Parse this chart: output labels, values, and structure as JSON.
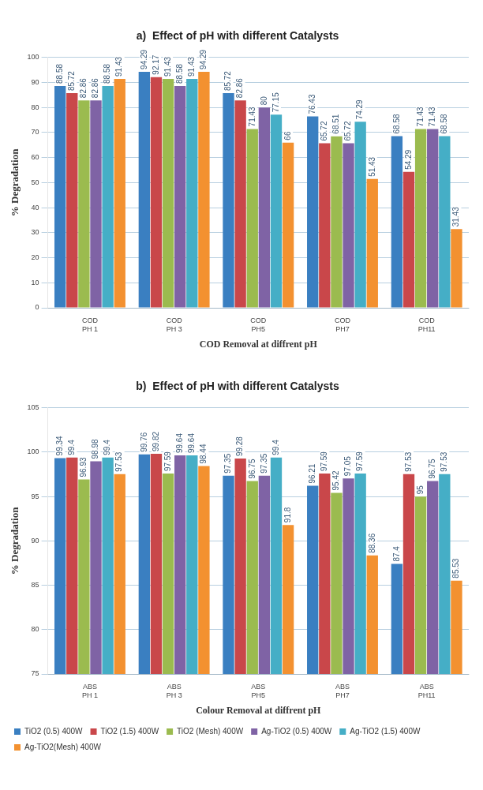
{
  "chart_data": [
    {
      "type": "bar",
      "title": "a)  Effect of pH with different Catalysts",
      "xlabel": "COD Removal at diffrent pH",
      "ylabel": "% Degradation",
      "categories": [
        "PH 1",
        "PH 3",
        "PH5",
        "PH7",
        "PH11"
      ],
      "annotations": [
        "COD",
        "COD",
        "COD",
        "COD",
        "COD"
      ],
      "series": [
        {
          "color": "#3a7fc1",
          "values": [
            88.58,
            94.29,
            85.72,
            76.43,
            68.58
          ]
        },
        {
          "color": "#c9474a",
          "values": [
            85.72,
            92.17,
            82.86,
            65.72,
            54.29
          ]
        },
        {
          "color": "#9bbb4f",
          "values": [
            82.86,
            91.43,
            71.43,
            68.51,
            71.43
          ]
        },
        {
          "color": "#7f63a5",
          "values": [
            82.86,
            88.58,
            80,
            65.72,
            71.43
          ]
        },
        {
          "color": "#45aec6",
          "values": [
            88.58,
            91.43,
            77.15,
            74.29,
            68.58
          ]
        },
        {
          "color": "#f39130",
          "values": [
            91.43,
            94.29,
            66,
            51.43,
            31.43
          ]
        }
      ],
      "ylim": [
        0,
        100
      ],
      "yticks": [
        0,
        10,
        20,
        30,
        40,
        50,
        60,
        70,
        80,
        90,
        100
      ],
      "grid": "y",
      "data_labels": true,
      "legend": false
    },
    {
      "type": "bar",
      "title": "b)  Effect of pH with different Catalysts",
      "xlabel": "Colour Removal at diffrent pH",
      "ylabel": "% Degradation",
      "categories": [
        "PH 1",
        "PH 3",
        "PH5",
        "PH7",
        "PH11"
      ],
      "annotations": [
        "ABS",
        "ABS",
        "ABS",
        "ABS",
        "ABS"
      ],
      "series": [
        {
          "name": "TiO2 (0.5) 400W",
          "color": "#3a7fc1",
          "values": [
            99.34,
            99.76,
            97.35,
            96.21,
            87.4
          ]
        },
        {
          "name": "TiO2 (1.5) 400W",
          "color": "#c9474a",
          "values": [
            99.4,
            99.82,
            99.28,
            97.59,
            97.53
          ]
        },
        {
          "name": "TiO2 (Mesh) 400W",
          "color": "#9bbb4f",
          "values": [
            96.93,
            97.59,
            96.75,
            95.42,
            95
          ]
        },
        {
          "name": "Ag-TiO2 (0.5) 400W",
          "color": "#7f63a5",
          "values": [
            98.98,
            99.64,
            97.35,
            97.05,
            96.75
          ]
        },
        {
          "name": "Ag-TiO2 (1.5) 400W",
          "color": "#45aec6",
          "values": [
            99.4,
            99.64,
            99.4,
            97.59,
            97.53
          ]
        },
        {
          "name": "Ag-TiO2(Mesh) 400W",
          "color": "#f39130",
          "values": [
            97.53,
            98.44,
            91.8,
            88.36,
            85.53
          ]
        }
      ],
      "ylim": [
        75,
        105
      ],
      "yticks": [
        75,
        80,
        85,
        90,
        95,
        100,
        105
      ],
      "grid": "y",
      "data_labels": true,
      "legend": "bottom left"
    }
  ]
}
